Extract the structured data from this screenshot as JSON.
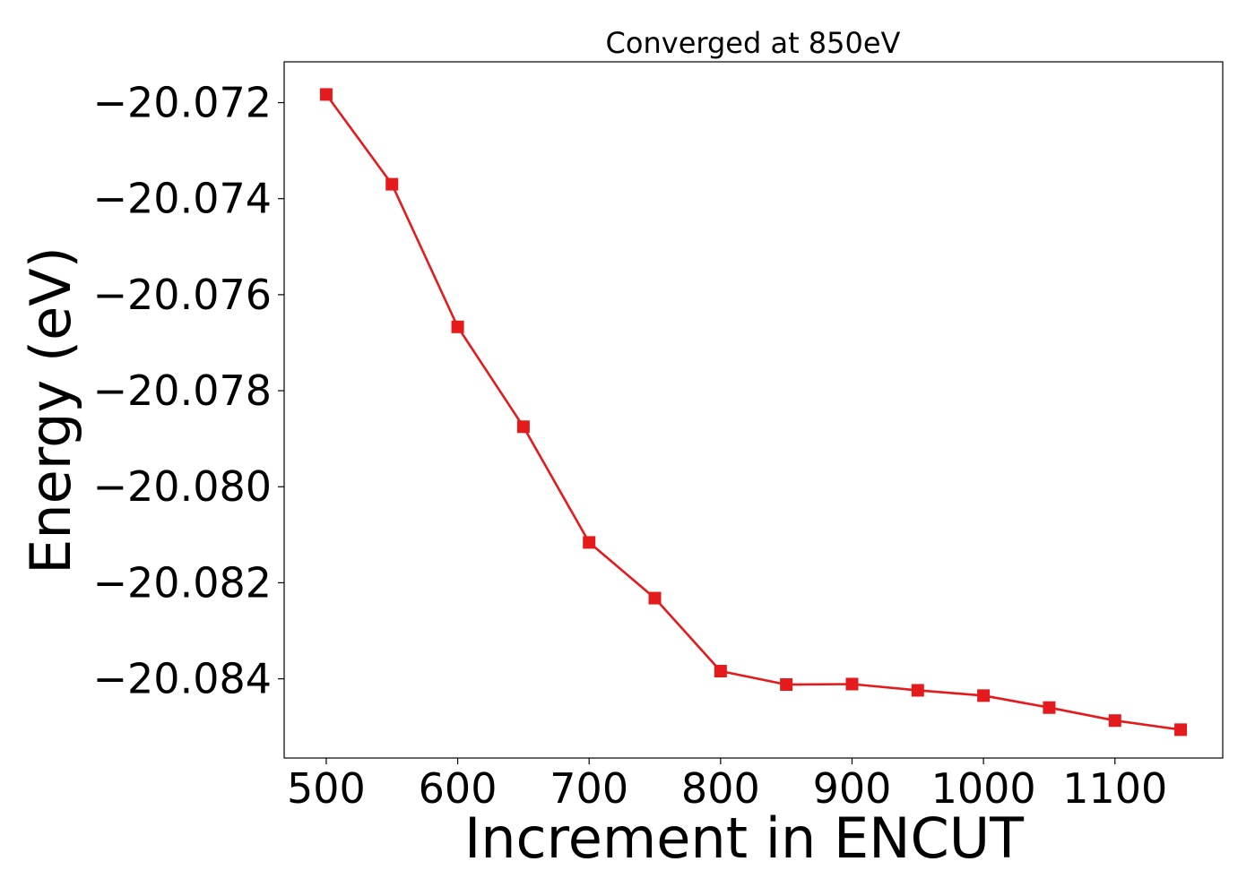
{
  "chart_data": {
    "type": "line",
    "title": "Converged at 850eV",
    "xlabel": "Increment in ENCUT",
    "ylabel": "Energy (eV)",
    "xlim": [
      468,
      1182
    ],
    "ylim": [
      -20.08565,
      -20.07115
    ],
    "xticks": [
      500,
      600,
      700,
      800,
      900,
      1000,
      1100
    ],
    "xtick_labels": [
      "500",
      "600",
      "700",
      "800",
      "900",
      "1000",
      "1100"
    ],
    "yticks": [
      -20.072,
      -20.074,
      -20.076,
      -20.078,
      -20.08,
      -20.082,
      -20.084
    ],
    "ytick_labels": [
      "−20.072",
      "−20.074",
      "−20.076",
      "−20.078",
      "−20.080",
      "−20.082",
      "−20.084"
    ],
    "grid": false,
    "marker": "square",
    "color": "#e41a1c",
    "series": [
      {
        "x": [
          500,
          550,
          600,
          650,
          700,
          750,
          800,
          850,
          900,
          950,
          1000,
          1050,
          1100,
          1150
        ],
        "y": [
          -20.07183,
          -20.0737,
          -20.07667,
          -20.07875,
          -20.08116,
          -20.08232,
          -20.08384,
          -20.08412,
          -20.08411,
          -20.08424,
          -20.08435,
          -20.0846,
          -20.08487,
          -20.08506
        ]
      }
    ]
  }
}
